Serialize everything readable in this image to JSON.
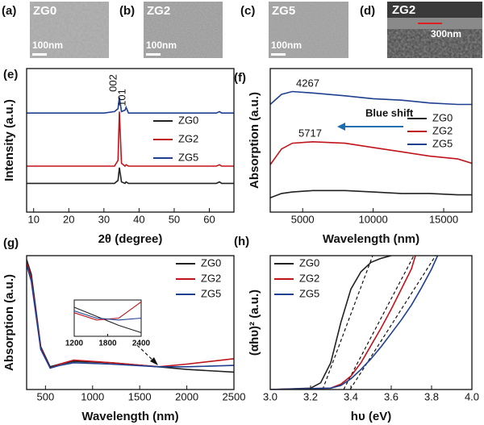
{
  "images": [
    {
      "label": "(a)",
      "name": "ZG0",
      "scale": "100nm"
    },
    {
      "label": "(b)",
      "name": "ZG2",
      "scale": "100nm"
    },
    {
      "label": "(c)",
      "name": "ZG5",
      "scale": "100nm"
    },
    {
      "label": "(d)",
      "name": "ZG2",
      "scale": "300nm"
    }
  ],
  "chart_data": [
    {
      "type": "line",
      "label": "(e)",
      "xlabel": "2θ (degree)",
      "ylabel": "Intensity (a.u.)",
      "xlim": [
        8,
        67
      ],
      "ylim": [
        0,
        1
      ],
      "xticks": [
        10,
        20,
        30,
        40,
        50,
        60
      ],
      "x": [
        8,
        30,
        33,
        34,
        34.4,
        35,
        36,
        36.3,
        37,
        50,
        62,
        62.9,
        63.5,
        67
      ],
      "series": [
        {
          "name": "ZG0",
          "color": "#222222",
          "values": [
            0.2,
            0.2,
            0.2,
            0.22,
            0.31,
            0.21,
            0.2,
            0.21,
            0.2,
            0.2,
            0.2,
            0.21,
            0.2,
            0.2
          ]
        },
        {
          "name": "ZG2",
          "color": "#c0141c",
          "values": [
            0.32,
            0.32,
            0.32,
            0.36,
            0.7,
            0.34,
            0.32,
            0.33,
            0.32,
            0.32,
            0.32,
            0.33,
            0.32,
            0.32
          ]
        },
        {
          "name": "ZG5",
          "color": "#1f3f8f",
          "values": [
            0.69,
            0.69,
            0.7,
            0.72,
            0.8,
            0.7,
            0.71,
            0.73,
            0.69,
            0.69,
            0.69,
            0.7,
            0.69,
            0.69
          ]
        }
      ],
      "annotations": [
        "002",
        "101"
      ]
    },
    {
      "type": "line",
      "label": "(f)",
      "xlabel": "Wavelength (nm)",
      "ylabel": "Absorption (a.u.)",
      "xlim": [
        2700,
        17000
      ],
      "ylim": [
        0,
        1
      ],
      "xticks": [
        5000,
        10000,
        15000
      ],
      "x": [
        2700,
        3500,
        4267,
        5717,
        8000,
        10000,
        12000,
        14000,
        16000,
        17000
      ],
      "series": [
        {
          "name": "ZG0",
          "color": "#222222",
          "values": [
            0.1,
            0.13,
            0.14,
            0.15,
            0.15,
            0.14,
            0.13,
            0.13,
            0.12,
            0.12
          ]
        },
        {
          "name": "ZG2",
          "color": "#c0141c",
          "values": [
            0.33,
            0.44,
            0.48,
            0.49,
            0.48,
            0.45,
            0.42,
            0.39,
            0.37,
            0.34
          ]
        },
        {
          "name": "ZG5",
          "color": "#1f3f8f",
          "values": [
            0.75,
            0.82,
            0.84,
            0.83,
            0.81,
            0.79,
            0.78,
            0.76,
            0.75,
            0.75
          ]
        }
      ],
      "annotations": [
        "4267",
        "5717",
        "Blue shift"
      ]
    },
    {
      "type": "line",
      "label": "(g)",
      "xlabel": "Wavelength (nm)",
      "ylabel": "Absorption (a.u.)",
      "xlim": [
        300,
        2500
      ],
      "ylim": [
        0,
        1
      ],
      "xticks": [
        500,
        1000,
        1500,
        2000,
        2500
      ],
      "x": [
        300,
        350,
        450,
        550,
        650,
        800,
        1200,
        1700,
        2000,
        2500
      ],
      "series": [
        {
          "name": "ZG0",
          "color": "#222222",
          "values": [
            0.97,
            0.86,
            0.32,
            0.17,
            0.19,
            0.21,
            0.2,
            0.17,
            0.15,
            0.13
          ]
        },
        {
          "name": "ZG2",
          "color": "#c0141c",
          "values": [
            0.95,
            0.83,
            0.31,
            0.16,
            0.19,
            0.22,
            0.2,
            0.17,
            0.19,
            0.23
          ]
        },
        {
          "name": "ZG5",
          "color": "#1f3f8f",
          "values": [
            0.93,
            0.81,
            0.3,
            0.16,
            0.18,
            0.2,
            0.19,
            0.17,
            0.17,
            0.18
          ]
        }
      ],
      "inset": {
        "xlim": [
          1200,
          2400
        ],
        "ylim": [
          0,
          1
        ],
        "xticks": [
          1200,
          1800,
          2400
        ],
        "x": [
          1200,
          1600,
          2000,
          2400
        ],
        "series": [
          {
            "color": "#222222",
            "values": [
              0.8,
              0.55,
              0.3,
              0.1
            ]
          },
          {
            "color": "#c0141c",
            "values": [
              0.65,
              0.45,
              0.5,
              0.95
            ]
          },
          {
            "color": "#1f3f8f",
            "values": [
              0.7,
              0.5,
              0.45,
              0.5
            ]
          }
        ]
      }
    },
    {
      "type": "line",
      "label": "(h)",
      "xlabel": "hυ (eV)",
      "ylabel": "(αhυ)² (a.u.)",
      "xlim": [
        3.0,
        4.0
      ],
      "ylim": [
        0,
        1
      ],
      "xticks": [
        {
          "value": 3.0,
          "label": "3.0"
        },
        {
          "value": 3.2,
          "label": "3.2"
        },
        {
          "value": 3.4,
          "label": "3.4"
        },
        {
          "value": 3.6,
          "label": "3.6"
        },
        {
          "value": 3.8,
          "label": "3.8"
        },
        {
          "value": 4.0,
          "label": "4.0"
        }
      ],
      "series": [
        {
          "name": "ZG0",
          "color": "#222222",
          "x": [
            3.0,
            3.2,
            3.25,
            3.3,
            3.35,
            3.4,
            3.45,
            3.5,
            3.55,
            3.6
          ],
          "values": [
            0,
            0.01,
            0.05,
            0.2,
            0.5,
            0.75,
            0.88,
            0.95,
            0.98,
            1.0
          ]
        },
        {
          "name": "ZG2",
          "color": "#c0141c",
          "x": [
            3.0,
            3.3,
            3.35,
            3.4,
            3.45,
            3.5,
            3.55,
            3.6,
            3.65,
            3.7,
            3.72
          ],
          "values": [
            0,
            0.01,
            0.04,
            0.1,
            0.2,
            0.33,
            0.46,
            0.6,
            0.75,
            0.9,
            1.0
          ]
        },
        {
          "name": "ZG5",
          "color": "#1f3f8f",
          "x": [
            3.0,
            3.3,
            3.35,
            3.4,
            3.45,
            3.5,
            3.55,
            3.6,
            3.65,
            3.7,
            3.75,
            3.8,
            3.83
          ],
          "values": [
            0,
            0.01,
            0.03,
            0.08,
            0.15,
            0.23,
            0.32,
            0.42,
            0.52,
            0.63,
            0.76,
            0.9,
            1.0
          ]
        }
      ]
    }
  ]
}
